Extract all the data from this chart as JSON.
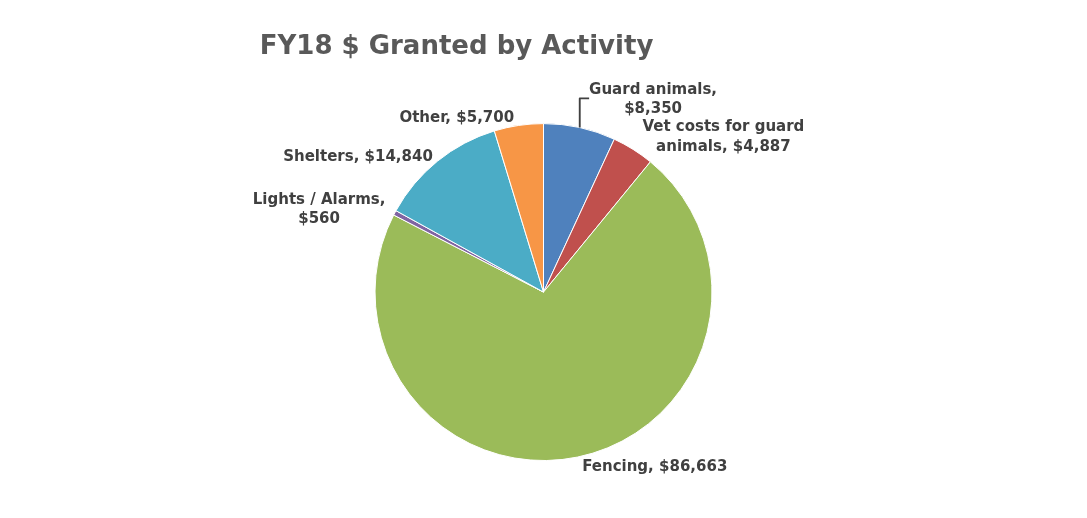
{
  "chart_data": {
    "type": "pie",
    "title": "FY18 $ Granted by Activity",
    "categories": [
      "Guard animals, $8,350",
      "Vet costs for guard animals, $4,887",
      "Fencing, $86,663",
      "Lights / Alarms, $560",
      "Shelters, $14,840",
      "Other, $5,700"
    ],
    "values": [
      8350,
      4887,
      86663,
      560,
      14840,
      5700
    ],
    "colors": [
      "#4f81bd",
      "#c0504d",
      "#9bbb59",
      "#8064a2",
      "#4bacc6",
      "#f79646"
    ],
    "legend": false
  }
}
